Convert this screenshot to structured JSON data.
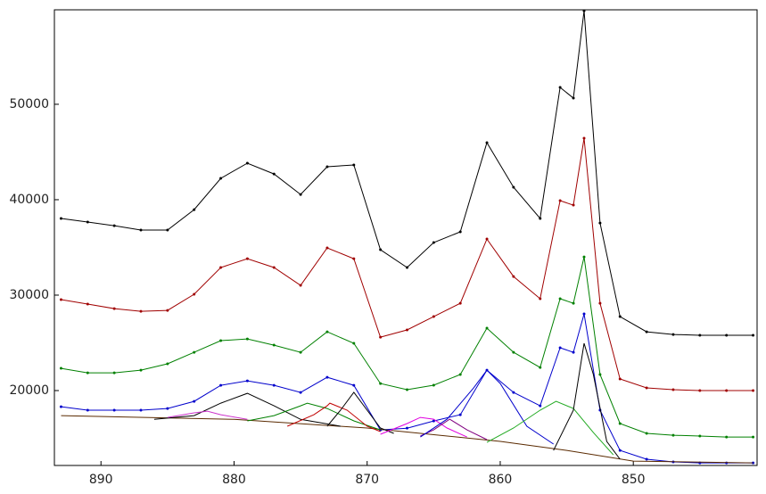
{
  "chart_data": {
    "type": "line",
    "xlim": [
      893.5,
      840.7
    ],
    "ylim": [
      12150,
      59900
    ],
    "xticks": [
      890,
      880,
      870,
      860,
      850
    ],
    "yticks": [
      20000,
      30000,
      40000,
      50000
    ],
    "x": [
      893,
      891,
      889,
      887,
      885,
      883,
      881,
      879,
      877,
      875,
      873,
      871,
      869,
      867,
      865,
      863,
      861,
      859,
      857,
      855.5,
      854.5,
      853.7,
      852.5,
      851,
      849,
      847,
      845,
      843,
      841
    ],
    "series": [
      {
        "color": "#000000",
        "markers": true,
        "values": [
          38030,
          37660,
          37280,
          36820,
          36820,
          38960,
          42240,
          43830,
          42700,
          40550,
          43450,
          43640,
          34760,
          32890,
          35510,
          36630,
          45980,
          41300,
          38030,
          51770,
          50650,
          59800,
          37560,
          27750,
          26160,
          25880,
          25790,
          25790,
          25790
        ]
      },
      {
        "color": "#a00000",
        "markers": true,
        "values": [
          29530,
          29060,
          28590,
          28310,
          28400,
          30090,
          32890,
          33820,
          32890,
          31020,
          34950,
          33820,
          25600,
          26350,
          27750,
          29150,
          35880,
          31950,
          29620,
          39900,
          39430,
          46440,
          29150,
          21210,
          20280,
          20090,
          20000,
          20000,
          20000
        ]
      },
      {
        "color": "#008000",
        "markers": true,
        "values": [
          22330,
          21860,
          21860,
          22140,
          22800,
          24010,
          25230,
          25410,
          24760,
          24010,
          26160,
          24950,
          20740,
          20090,
          20560,
          21680,
          26540,
          24010,
          22420,
          29620,
          29150,
          34010,
          21680,
          16540,
          15510,
          15320,
          15230,
          15130,
          15130
        ]
      },
      {
        "color": "#0000cc",
        "markers": true,
        "values": [
          18310,
          17940,
          17940,
          17940,
          18120,
          18870,
          20550,
          21020,
          20550,
          19800,
          21390,
          20550,
          15880,
          16060,
          16810,
          17470,
          22140,
          19800,
          18400,
          24480,
          24010,
          28030,
          17940,
          13730,
          12800,
          12520,
          12420,
          12420,
          12420
        ]
      },
      {
        "color": "#5a2a00",
        "x": [
          893,
          880,
          870,
          860,
          855,
          850,
          841
        ],
        "values": [
          17370,
          16980,
          16070,
          14670,
          13730,
          12610,
          12420
        ]
      },
      {
        "color": "#000000",
        "x": [
          886,
          883,
          881,
          879,
          877,
          875,
          872
        ],
        "values": [
          16980,
          17370,
          18680,
          19710,
          18400,
          16980,
          16260
        ]
      },
      {
        "color": "#cc33cc",
        "x": [
          885,
          883,
          882,
          881,
          879
        ],
        "values": [
          17190,
          17660,
          17840,
          17470,
          16980
        ]
      },
      {
        "color": "#008000",
        "x": [
          879,
          877,
          875,
          874.5,
          873,
          871,
          869
        ],
        "values": [
          16820,
          17370,
          18400,
          18680,
          18120,
          16820,
          15880
        ]
      },
      {
        "color": "#c00000",
        "x": [
          876,
          874,
          873,
          872.8,
          871.5,
          870,
          869
        ],
        "values": [
          16260,
          17470,
          18400,
          18680,
          17940,
          16260,
          15700
        ]
      },
      {
        "color": "#000000",
        "x": [
          873,
          872,
          871,
          870,
          869,
          868
        ],
        "values": [
          16260,
          17940,
          19810,
          17940,
          16070,
          15510
        ]
      },
      {
        "color": "#e000e0",
        "x": [
          869,
          867,
          866,
          865,
          864,
          862.5
        ],
        "values": [
          15420,
          16540,
          17190,
          17000,
          16070,
          15130
        ]
      },
      {
        "color": "#800080",
        "x": [
          866,
          865,
          863.8,
          862.5,
          861
        ],
        "values": [
          15230,
          15880,
          17000,
          15880,
          14860
        ]
      },
      {
        "color": "#0000cc",
        "x": [
          866,
          864,
          862,
          861,
          860,
          858,
          856
        ],
        "values": [
          15130,
          17000,
          20270,
          22140,
          20740,
          16260,
          14390
        ]
      },
      {
        "color": "#22aa22",
        "x": [
          861,
          859,
          857,
          855.8,
          854.5,
          853,
          851.5
        ],
        "values": [
          14570,
          16070,
          17940,
          18870,
          18120,
          15600,
          13260
        ]
      },
      {
        "color": "#000000",
        "x": [
          856,
          854.5,
          853.7,
          853,
          852,
          851
        ],
        "values": [
          13730,
          17940,
          24950,
          21680,
          14670,
          12800
        ]
      }
    ]
  }
}
